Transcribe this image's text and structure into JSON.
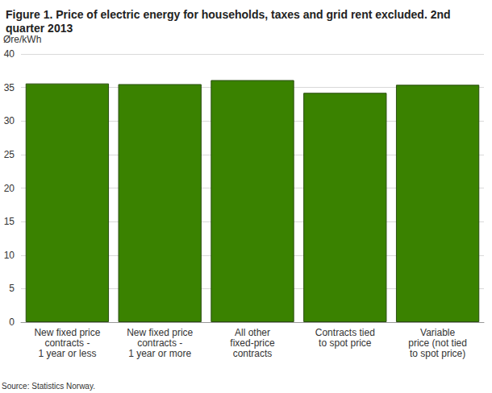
{
  "chart_data": {
    "type": "bar",
    "title": "Figure 1. Price of electric energy for households, taxes and grid rent excluded. 2nd quarter 2013",
    "y_label": "Øre/kWh",
    "source": "Source: Statistics Norway.",
    "categories": [
      "New fixed price\ncontracts -\n1 year or less",
      "New fixed price\ncontracts -\n1 year or more",
      "All other\nfixed-price\ncontracts",
      "Contracts tied\nto spot price",
      "Variable\nprice (not tied\nto spot price)"
    ],
    "values": [
      35.6,
      35.5,
      36.1,
      34.2,
      35.4
    ],
    "color": "#3a8200",
    "ylim": [
      0,
      40
    ],
    "yticks": [
      0,
      5,
      10,
      15,
      20,
      25,
      30,
      35,
      40
    ],
    "grid": true
  }
}
